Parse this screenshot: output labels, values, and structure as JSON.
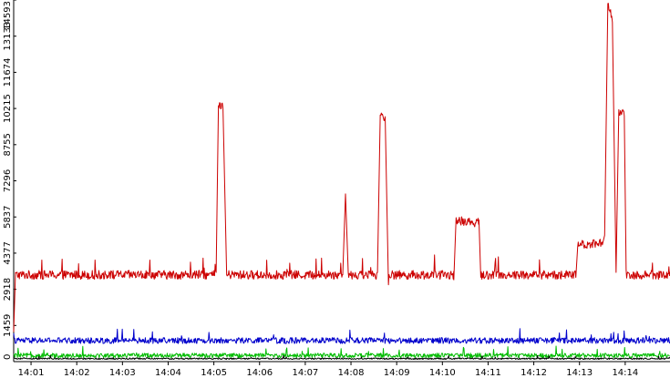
{
  "chart_data": {
    "type": "line",
    "title": "",
    "xlabel": "",
    "ylabel": "",
    "ylim": [
      0,
      14593
    ],
    "y_ticks": [
      "0",
      "1459",
      "2918",
      "4377",
      "5837",
      "7296",
      "8755",
      "10215",
      "11674",
      "13133",
      "14593"
    ],
    "x_ticks": [
      "14:01",
      "14:02",
      "14:03",
      "14:04",
      "14:05",
      "14:06",
      "14:07",
      "14:08",
      "14:09",
      "14:10",
      "14:11",
      "14:12",
      "14:13",
      "14:14"
    ],
    "x_tick_positions_min": [
      1,
      2,
      3,
      4,
      5,
      6,
      7,
      8,
      9,
      10,
      11,
      12,
      13,
      14
    ],
    "x_range_min": [
      0.62,
      14.98
    ],
    "grid": false,
    "legend": "none",
    "background": "#ffffff",
    "axis_color": "#000000",
    "series": [
      {
        "color": "#cc0000",
        "baseline": 3500,
        "noise": 180,
        "segments": [
          {
            "x": [
              0.62,
              0.66
            ],
            "y": [
              1200,
              3600
            ]
          },
          {
            "x": [
              5.05,
              5.1,
              5.2,
              5.28
            ],
            "y": [
              3600,
              10350,
              10300,
              3500
            ]
          },
          {
            "x": [
              7.82,
              7.88,
              7.94
            ],
            "y": [
              3500,
              6900,
              3600
            ]
          },
          {
            "x": [
              8.58,
              8.64,
              8.75,
              8.82
            ],
            "y": [
              3600,
              9950,
              9850,
              3100
            ]
          },
          {
            "x": [
              10.25,
              10.3,
              10.8,
              10.84
            ],
            "y": [
              3300,
              5700,
              5600,
              3400
            ]
          },
          {
            "x": [
              12.92,
              12.96,
              13.5,
              13.55
            ],
            "y": [
              3400,
              4700,
              4800,
              5100
            ]
          },
          {
            "x": [
              13.55,
              13.62,
              13.72,
              13.8
            ],
            "y": [
              5100,
              14500,
              13800,
              3600
            ]
          },
          {
            "x": [
              13.8,
              13.86,
              13.98,
              14.02
            ],
            "y": [
              3600,
              10100,
              10000,
              3700
            ]
          }
        ]
      },
      {
        "color": "#0000cc",
        "baseline": 850,
        "noise": 120
      },
      {
        "color": "#00bb00",
        "baseline": 250,
        "noise": 90
      },
      {
        "color": "#000000",
        "baseline": 120,
        "noise": 30
      }
    ]
  }
}
